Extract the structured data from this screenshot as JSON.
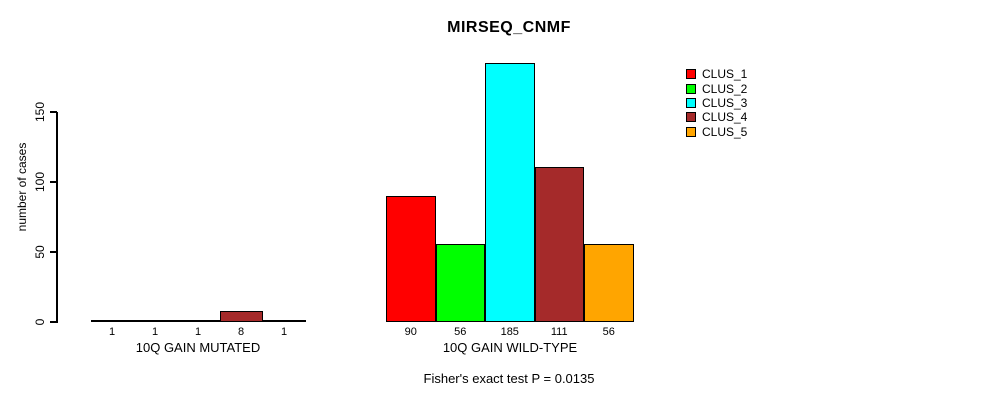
{
  "chart_data": {
    "type": "bar",
    "title": "MIRSEQ_CNMF",
    "ylabel": "number of cases",
    "footnote": "Fisher's exact test P = 0.0135",
    "yticks": [
      0,
      50,
      100,
      150
    ],
    "ylim": [
      0,
      187
    ],
    "grid": false,
    "legend_position": "right",
    "clusters": [
      {
        "name": "CLUS_1",
        "color": "#FF0000"
      },
      {
        "name": "CLUS_2",
        "color": "#00FF00"
      },
      {
        "name": "CLUS_3",
        "color": "#00FFFF"
      },
      {
        "name": "CLUS_4",
        "color": "#A52A2A"
      },
      {
        "name": "CLUS_5",
        "color": "#FFA500"
      }
    ],
    "groups": [
      {
        "label": "10Q GAIN MUTATED",
        "values": [
          1,
          1,
          1,
          8,
          1
        ]
      },
      {
        "label": "10Q GAIN WILD-TYPE",
        "values": [
          90,
          56,
          185,
          111,
          56
        ]
      }
    ],
    "axis_color": "#000000",
    "background": "#FFFFFF"
  }
}
